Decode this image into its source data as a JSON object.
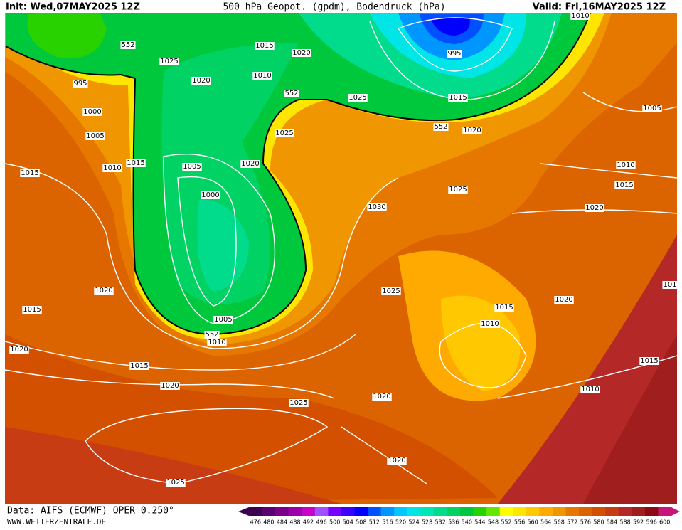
{
  "header": {
    "init": "Init: Wed,07MAY2025 12Z",
    "title": "500 hPa Geopot. (gpdm), Bodendruck (hPa)",
    "valid": "Valid: Fri,16MAY2025 12Z"
  },
  "footer": {
    "data": "Data: AIFS (ECMWF) OPER 0.250°",
    "url": "WWW.WETTERZENTRALE.DE"
  },
  "isobar_labels": [
    "552",
    "1025",
    "1015",
    "1020",
    "995",
    "1020",
    "1010",
    "552",
    "1025",
    "1015",
    "995",
    "1010",
    "1000",
    "552",
    "1020",
    "1005",
    "1005",
    "1025",
    "1015",
    "1010",
    "1005",
    "1020",
    "1015",
    "1010",
    "1015",
    "1025",
    "1000",
    "1030",
    "1020",
    "1020",
    "1025",
    "101",
    "1015",
    "1015",
    "1020",
    "1005",
    "1010",
    "552",
    "1010",
    "1020",
    "1015",
    "1015",
    "1020",
    "1010",
    "1020",
    "1025",
    "1020",
    "1025"
  ],
  "colorbar": {
    "labels": [
      "476",
      "480",
      "484",
      "488",
      "492",
      "496",
      "500",
      "504",
      "508",
      "512",
      "516",
      "520",
      "524",
      "528",
      "532",
      "536",
      "540",
      "544",
      "548",
      "552",
      "556",
      "560",
      "564",
      "568",
      "572",
      "576",
      "580",
      "584",
      "588",
      "592",
      "596",
      "600"
    ],
    "colors": [
      "#3c0050",
      "#5a0070",
      "#7a008c",
      "#9a00aa",
      "#c800c8",
      "#a050ff",
      "#7800ff",
      "#3c00ff",
      "#0000ff",
      "#0050ff",
      "#0096ff",
      "#00c8ff",
      "#00e6e6",
      "#00e6b4",
      "#00dc8c",
      "#00d264",
      "#00c83c",
      "#28d200",
      "#64e600",
      "#ffff00",
      "#ffe600",
      "#ffc800",
      "#ffaa00",
      "#f09600",
      "#e67800",
      "#dc6400",
      "#d25000",
      "#c83c14",
      "#b42828",
      "#a01e1e",
      "#8c0a14",
      "#c8147a"
    ]
  }
}
